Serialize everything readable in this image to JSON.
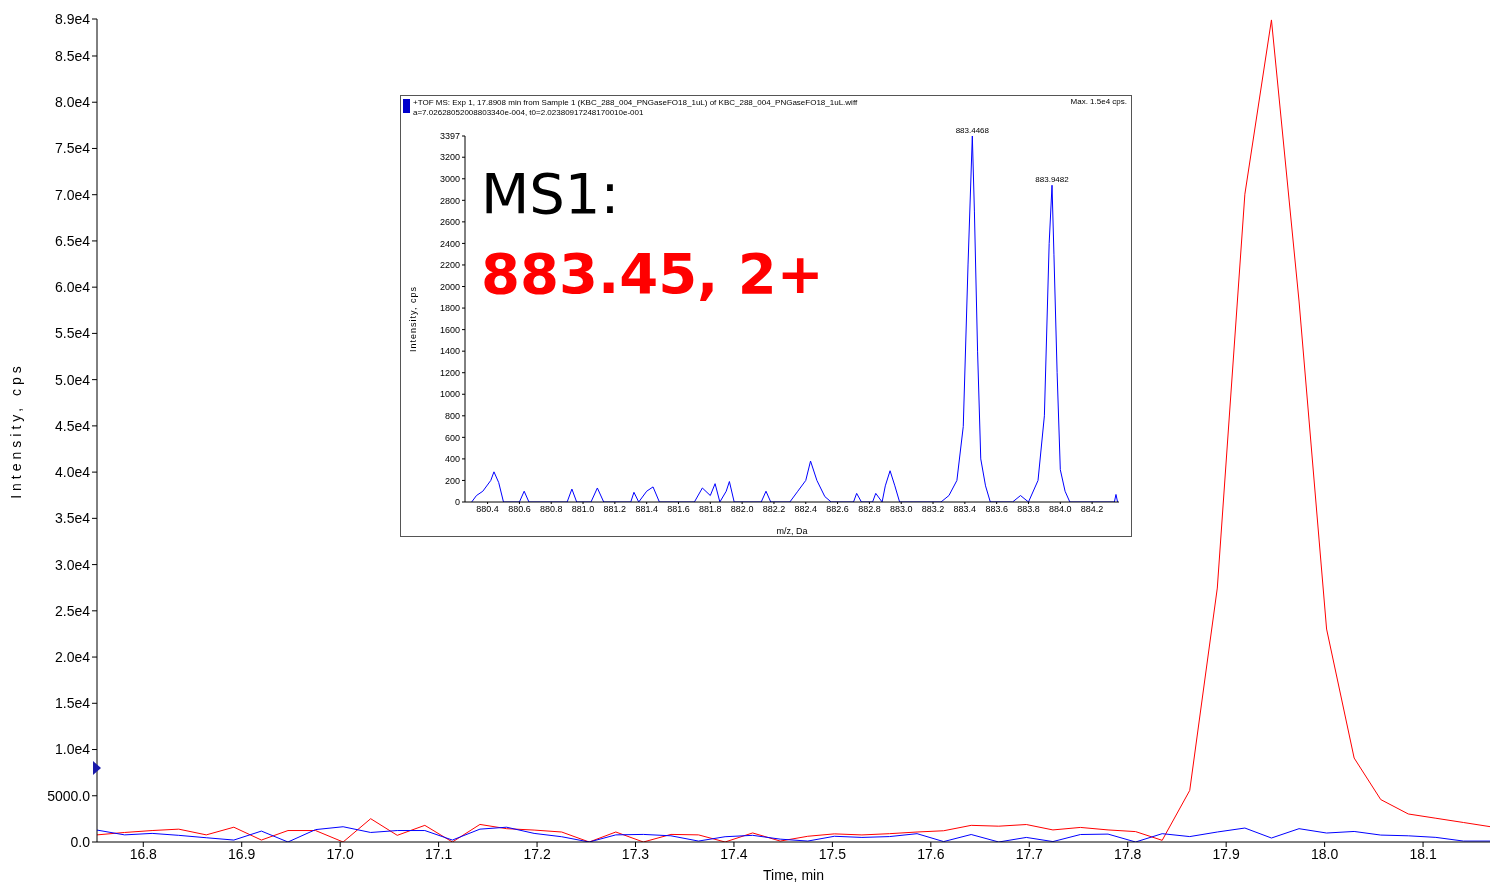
{
  "chart_data": [
    {
      "type": "line",
      "xlabel": "Time, min",
      "ylabel": "Intensity, cps",
      "x": [
        16.753,
        16.781,
        16.809,
        16.836,
        16.864,
        16.892,
        16.92,
        16.947,
        16.975,
        17.003,
        17.031,
        17.058,
        17.086,
        17.114,
        17.142,
        17.169,
        17.197,
        17.225,
        17.253,
        17.28,
        17.308,
        17.336,
        17.364,
        17.391,
        17.419,
        17.447,
        17.475,
        17.502,
        17.53,
        17.558,
        17.586,
        17.613,
        17.641,
        17.669,
        17.697,
        17.724,
        17.752,
        17.78,
        17.808,
        17.835,
        17.863,
        17.891,
        17.919,
        17.946,
        17.974,
        18.002,
        18.03,
        18.057,
        18.085,
        18.113,
        18.141,
        18.168
      ],
      "series": [
        {
          "color": "#ff0000",
          "values": [
            770,
            1030,
            1240,
            1390,
            770,
            1600,
            210,
            1240,
            1240,
            0,
            2520,
            720,
            1800,
            0,
            1900,
            1440,
            1290,
            1080,
            0,
            1080,
            0,
            820,
            770,
            0,
            980,
            100,
            620,
            880,
            765,
            900,
            1080,
            1215,
            1800,
            1710,
            1890,
            1305,
            1575,
            1305,
            1125,
            180,
            5580,
            27460,
            70050,
            88900,
            58500,
            23030,
            9080,
            4590,
            3030,
            2570,
            2110,
            1660
          ]
        },
        {
          "color": "#0000ff",
          "values": [
            1290,
            770,
            930,
            720,
            460,
            210,
            1180,
            0,
            1340,
            1650,
            1030,
            1240,
            1240,
            210,
            1390,
            1600,
            930,
            570,
            0,
            770,
            820,
            670,
            100,
            570,
            720,
            310,
            100,
            620,
            495,
            585,
            900,
            45,
            810,
            0,
            495,
            45,
            810,
            855,
            0,
            900,
            585,
            1080,
            1510,
            430,
            1440,
            970,
            1140,
            750,
            670,
            500,
            100,
            100
          ]
        }
      ],
      "xlim": [
        16.753,
        18.168
      ],
      "xticks": [
        16.8,
        16.9,
        {
          "value": 17,
          "label": "17.0"
        },
        17.1,
        17.2,
        17.3,
        17.4,
        17.5,
        17.6,
        17.7,
        17.8,
        17.9,
        {
          "value": 18,
          "label": "18.0"
        },
        18.1
      ],
      "ylim": [
        0,
        89000
      ],
      "yticks": [
        {
          "value": 0,
          "label": "0.0"
        },
        {
          "value": 5000,
          "label": "5000.0"
        },
        {
          "value": 10000,
          "label": "1.0e4"
        },
        {
          "value": 15000,
          "label": "1.5e4"
        },
        {
          "value": 20000,
          "label": "2.0e4"
        },
        {
          "value": 25000,
          "label": "2.5e4"
        },
        {
          "value": 30000,
          "label": "3.0e4"
        },
        {
          "value": 35000,
          "label": "3.5e4"
        },
        {
          "value": 40000,
          "label": "4.0e4"
        },
        {
          "value": 45000,
          "label": "4.5e4"
        },
        {
          "value": 50000,
          "label": "5.0e4"
        },
        {
          "value": 55000,
          "label": "5.5e4"
        },
        {
          "value": 60000,
          "label": "6.0e4"
        },
        {
          "value": 65000,
          "label": "6.5e4"
        },
        {
          "value": 70000,
          "label": "7.0e4"
        },
        {
          "value": 75000,
          "label": "7.5e4"
        },
        {
          "value": 80000,
          "label": "8.0e4"
        },
        {
          "value": 85000,
          "label": "8.5e4"
        },
        {
          "value": 89000,
          "label": "8.9e4"
        }
      ],
      "marker": "none",
      "line_style": "solid"
    },
    {
      "type": "line",
      "title": "+TOF MS: Exp 1, 17.8908 min from Sample 1 (KBC_288_004_PNGaseFO18_1uL) of KBC_288_004_PNGaseFO18_1uL.wiff",
      "subtitle": "a=7.02628052008803340e-004, t0=2.02380917248170010e-001",
      "xlabel": "m/z, Da",
      "ylabel": "Intensity, cps",
      "x": [
        880.3,
        880.33,
        880.37,
        880.42,
        880.44,
        880.47,
        880.5,
        880.6,
        880.63,
        880.66,
        880.9,
        880.93,
        880.96,
        881.05,
        881.09,
        881.13,
        881.3,
        881.32,
        881.35,
        881.4,
        881.44,
        881.48,
        881.7,
        881.75,
        881.8,
        881.83,
        881.86,
        881.9,
        881.92,
        881.95,
        882.12,
        882.15,
        882.18,
        882.3,
        882.35,
        882.4,
        882.43,
        882.47,
        882.52,
        882.56,
        882.7,
        882.72,
        882.75,
        882.82,
        882.84,
        882.88,
        882.9,
        882.93,
        882.96,
        882.99,
        883.25,
        883.3,
        883.35,
        883.39,
        883.42,
        883.447,
        883.46,
        883.48,
        883.5,
        883.53,
        883.56,
        883.7,
        883.75,
        883.8,
        883.86,
        883.9,
        883.93,
        883.948,
        883.96,
        883.98,
        884.0,
        884.03,
        884.06,
        884.34,
        884.35,
        884.36
      ],
      "series": [
        {
          "color": "#0000ff",
          "values": [
            0,
            60,
            100,
            200,
            280,
            180,
            0,
            0,
            100,
            0,
            0,
            120,
            0,
            0,
            130,
            0,
            0,
            90,
            0,
            100,
            140,
            0,
            0,
            130,
            60,
            170,
            0,
            100,
            190,
            0,
            0,
            100,
            0,
            0,
            100,
            200,
            380,
            200,
            50,
            0,
            0,
            80,
            0,
            0,
            80,
            0,
            150,
            290,
            150,
            0,
            0,
            60,
            200,
            700,
            2200,
            3397,
            2700,
            1400,
            400,
            150,
            0,
            0,
            60,
            0,
            200,
            800,
            2400,
            2940,
            2300,
            1200,
            300,
            100,
            0,
            0,
            70,
            0
          ]
        }
      ],
      "xlim": [
        880.258,
        884.369
      ],
      "xticks": [
        880.4,
        880.6,
        880.8,
        {
          "value": 881,
          "label": "881.0"
        },
        881.2,
        881.4,
        881.6,
        881.8,
        {
          "value": 882,
          "label": "882.0"
        },
        882.2,
        882.4,
        882.6,
        882.8,
        {
          "value": 883,
          "label": "883.0"
        },
        883.2,
        883.4,
        883.6,
        883.8,
        {
          "value": 884,
          "label": "884.0"
        },
        884.2
      ],
      "ylim": [
        0,
        3397
      ],
      "yticks": [
        0,
        200,
        400,
        600,
        800,
        1000,
        1200,
        1400,
        1600,
        1800,
        2000,
        2200,
        2400,
        2600,
        2800,
        3000,
        3200,
        3397
      ],
      "annotations": [
        "Max. 1.5e4 cps.",
        "MS1:",
        "883.45, 2+",
        {
          "text": "883.4468",
          "x": 883.447,
          "y": 3397
        },
        {
          "text": "883.9482",
          "x": 883.948,
          "y": 2940
        }
      ],
      "marker": "none",
      "line_style": "solid"
    }
  ]
}
